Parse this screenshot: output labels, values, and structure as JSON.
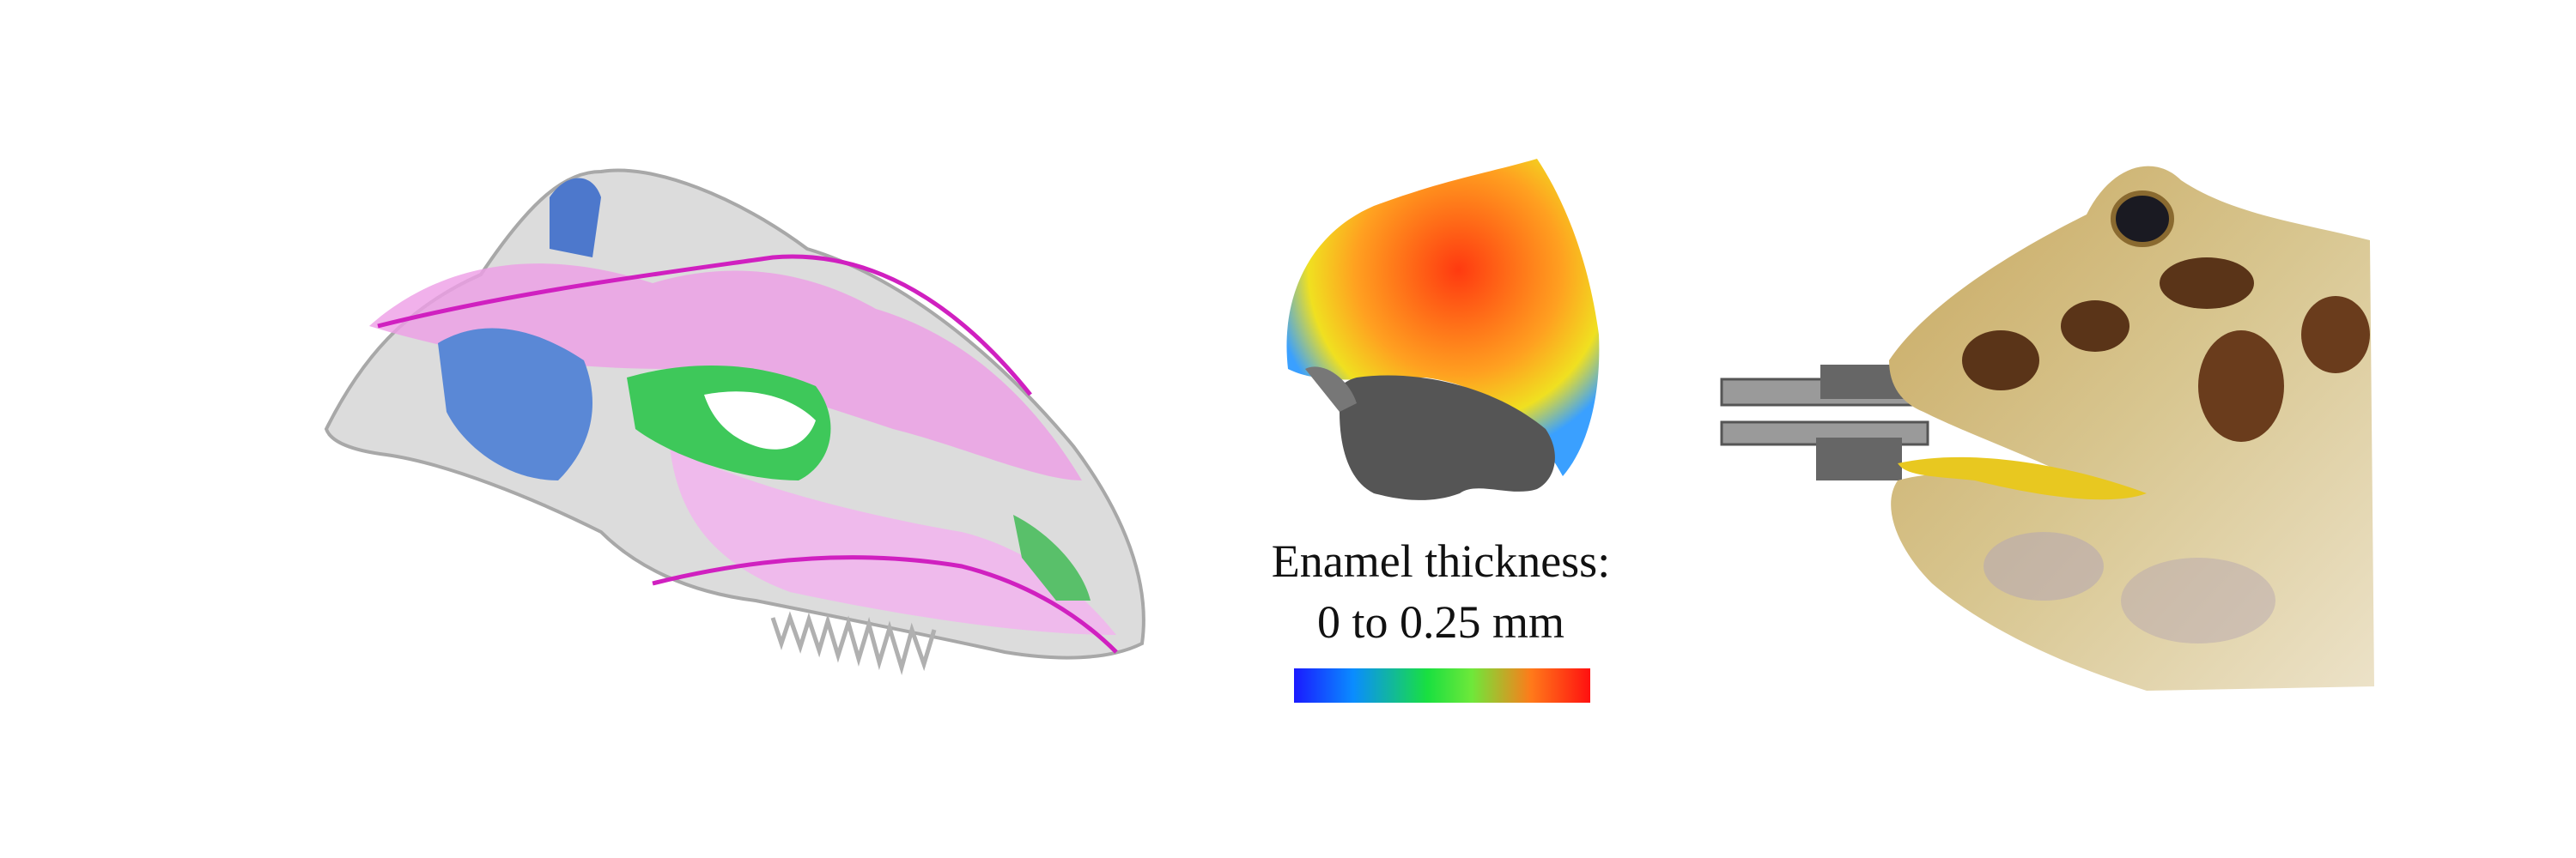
{
  "caption": {
    "line1": "Enamel thickness:",
    "line2": "0 to 0.25 mm"
  }
}
